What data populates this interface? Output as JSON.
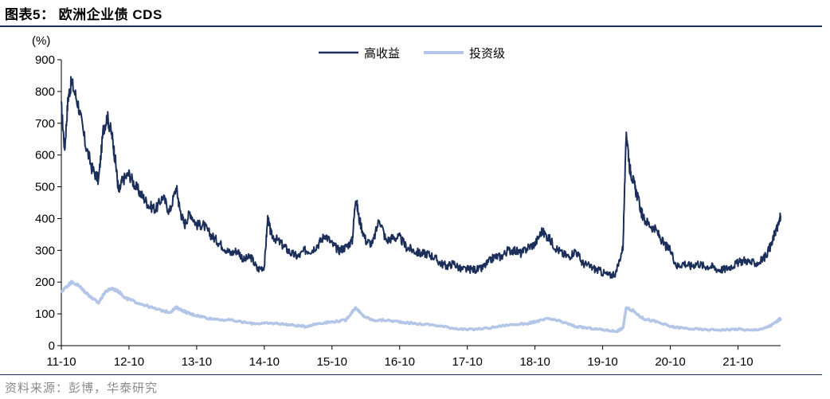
{
  "header": {
    "title": "图表5：  欧洲企业债 CDS"
  },
  "footer": {
    "source": "资料来源：彭博，华泰研究"
  },
  "chart_data": {
    "type": "line",
    "title": "图表5：  欧洲企业债 CDS",
    "y_unit_label": "(%)",
    "ylim": [
      0,
      900
    ],
    "y_ticks": [
      0,
      100,
      200,
      300,
      400,
      500,
      600,
      700,
      800,
      900
    ],
    "x_tick_labels": [
      "11-10",
      "12-10",
      "13-10",
      "14-10",
      "15-10",
      "16-10",
      "17-10",
      "18-10",
      "19-10",
      "20-10",
      "21-10"
    ],
    "legend_placement": "top-center",
    "grid": false,
    "series": [
      {
        "name": "高收益",
        "color": "#1b2f5a",
        "points": [
          [
            0.0,
            750
          ],
          [
            0.05,
            620
          ],
          [
            0.1,
            780
          ],
          [
            0.15,
            830
          ],
          [
            0.25,
            760
          ],
          [
            0.35,
            640
          ],
          [
            0.45,
            560
          ],
          [
            0.55,
            520
          ],
          [
            0.62,
            680
          ],
          [
            0.68,
            720
          ],
          [
            0.75,
            660
          ],
          [
            0.8,
            580
          ],
          [
            0.85,
            480
          ],
          [
            0.9,
            520
          ],
          [
            1.0,
            540
          ],
          [
            1.1,
            500
          ],
          [
            1.2,
            470
          ],
          [
            1.3,
            440
          ],
          [
            1.4,
            430
          ],
          [
            1.5,
            470
          ],
          [
            1.6,
            420
          ],
          [
            1.7,
            500
          ],
          [
            1.75,
            430
          ],
          [
            1.82,
            380
          ],
          [
            1.9,
            420
          ],
          [
            2.0,
            380
          ],
          [
            2.1,
            380
          ],
          [
            2.2,
            350
          ],
          [
            2.3,
            330
          ],
          [
            2.4,
            310
          ],
          [
            2.5,
            290
          ],
          [
            2.6,
            300
          ],
          [
            2.7,
            270
          ],
          [
            2.8,
            280
          ],
          [
            2.9,
            240
          ],
          [
            3.0,
            250
          ],
          [
            3.05,
            400
          ],
          [
            3.1,
            350
          ],
          [
            3.2,
            330
          ],
          [
            3.3,
            310
          ],
          [
            3.4,
            290
          ],
          [
            3.5,
            280
          ],
          [
            3.6,
            300
          ],
          [
            3.7,
            300
          ],
          [
            3.8,
            320
          ],
          [
            3.9,
            350
          ],
          [
            4.0,
            320
          ],
          [
            4.1,
            300
          ],
          [
            4.2,
            310
          ],
          [
            4.3,
            330
          ],
          [
            4.35,
            470
          ],
          [
            4.4,
            400
          ],
          [
            4.5,
            330
          ],
          [
            4.6,
            320
          ],
          [
            4.7,
            400
          ],
          [
            4.8,
            330
          ],
          [
            4.9,
            340
          ],
          [
            5.0,
            340
          ],
          [
            5.1,
            310
          ],
          [
            5.2,
            300
          ],
          [
            5.3,
            290
          ],
          [
            5.4,
            290
          ],
          [
            5.5,
            280
          ],
          [
            5.6,
            260
          ],
          [
            5.7,
            250
          ],
          [
            5.8,
            260
          ],
          [
            5.9,
            240
          ],
          [
            6.0,
            240
          ],
          [
            6.1,
            240
          ],
          [
            6.2,
            240
          ],
          [
            6.3,
            260
          ],
          [
            6.4,
            280
          ],
          [
            6.5,
            280
          ],
          [
            6.6,
            300
          ],
          [
            6.7,
            300
          ],
          [
            6.8,
            290
          ],
          [
            6.9,
            310
          ],
          [
            7.0,
            320
          ],
          [
            7.1,
            360
          ],
          [
            7.2,
            340
          ],
          [
            7.3,
            310
          ],
          [
            7.4,
            290
          ],
          [
            7.5,
            280
          ],
          [
            7.6,
            300
          ],
          [
            7.7,
            260
          ],
          [
            7.8,
            250
          ],
          [
            7.9,
            240
          ],
          [
            8.0,
            230
          ],
          [
            8.1,
            220
          ],
          [
            8.2,
            230
          ],
          [
            8.3,
            310
          ],
          [
            8.35,
            680
          ],
          [
            8.4,
            560
          ],
          [
            8.45,
            520
          ],
          [
            8.5,
            480
          ],
          [
            8.6,
            400
          ],
          [
            8.7,
            380
          ],
          [
            8.8,
            360
          ],
          [
            8.9,
            320
          ],
          [
            9.0,
            300
          ],
          [
            9.1,
            250
          ],
          [
            9.2,
            260
          ],
          [
            9.3,
            250
          ],
          [
            9.4,
            260
          ],
          [
            9.5,
            250
          ],
          [
            9.6,
            250
          ],
          [
            9.7,
            240
          ],
          [
            9.8,
            240
          ],
          [
            9.9,
            250
          ],
          [
            10.0,
            260
          ],
          [
            10.1,
            270
          ],
          [
            10.2,
            260
          ],
          [
            10.3,
            260
          ],
          [
            10.4,
            280
          ],
          [
            10.5,
            320
          ],
          [
            10.55,
            360
          ],
          [
            10.6,
            380
          ],
          [
            10.63,
            410
          ]
        ]
      },
      {
        "name": "投资级",
        "color": "#b4c6e7",
        "points": [
          [
            0.0,
            170
          ],
          [
            0.1,
            190
          ],
          [
            0.15,
            200
          ],
          [
            0.25,
            190
          ],
          [
            0.35,
            170
          ],
          [
            0.45,
            150
          ],
          [
            0.55,
            135
          ],
          [
            0.65,
            170
          ],
          [
            0.75,
            180
          ],
          [
            0.85,
            170
          ],
          [
            0.95,
            150
          ],
          [
            1.0,
            145
          ],
          [
            1.2,
            130
          ],
          [
            1.4,
            115
          ],
          [
            1.6,
            105
          ],
          [
            1.7,
            120
          ],
          [
            1.8,
            110
          ],
          [
            1.9,
            100
          ],
          [
            2.0,
            95
          ],
          [
            2.2,
            85
          ],
          [
            2.5,
            80
          ],
          [
            2.8,
            70
          ],
          [
            3.0,
            70
          ],
          [
            3.2,
            70
          ],
          [
            3.4,
            65
          ],
          [
            3.6,
            60
          ],
          [
            3.8,
            70
          ],
          [
            4.0,
            75
          ],
          [
            4.2,
            80
          ],
          [
            4.35,
            120
          ],
          [
            4.45,
            95
          ],
          [
            4.6,
            80
          ],
          [
            4.8,
            80
          ],
          [
            5.0,
            75
          ],
          [
            5.2,
            70
          ],
          [
            5.5,
            65
          ],
          [
            5.8,
            55
          ],
          [
            6.0,
            50
          ],
          [
            6.3,
            55
          ],
          [
            6.6,
            65
          ],
          [
            6.9,
            70
          ],
          [
            7.0,
            75
          ],
          [
            7.2,
            85
          ],
          [
            7.4,
            75
          ],
          [
            7.6,
            60
          ],
          [
            7.8,
            55
          ],
          [
            8.0,
            50
          ],
          [
            8.2,
            45
          ],
          [
            8.3,
            55
          ],
          [
            8.35,
            120
          ],
          [
            8.45,
            110
          ],
          [
            8.6,
            85
          ],
          [
            8.8,
            75
          ],
          [
            9.0,
            60
          ],
          [
            9.2,
            55
          ],
          [
            9.5,
            50
          ],
          [
            9.8,
            50
          ],
          [
            10.0,
            52
          ],
          [
            10.2,
            48
          ],
          [
            10.4,
            55
          ],
          [
            10.5,
            65
          ],
          [
            10.6,
            80
          ],
          [
            10.63,
            85
          ]
        ]
      }
    ]
  }
}
